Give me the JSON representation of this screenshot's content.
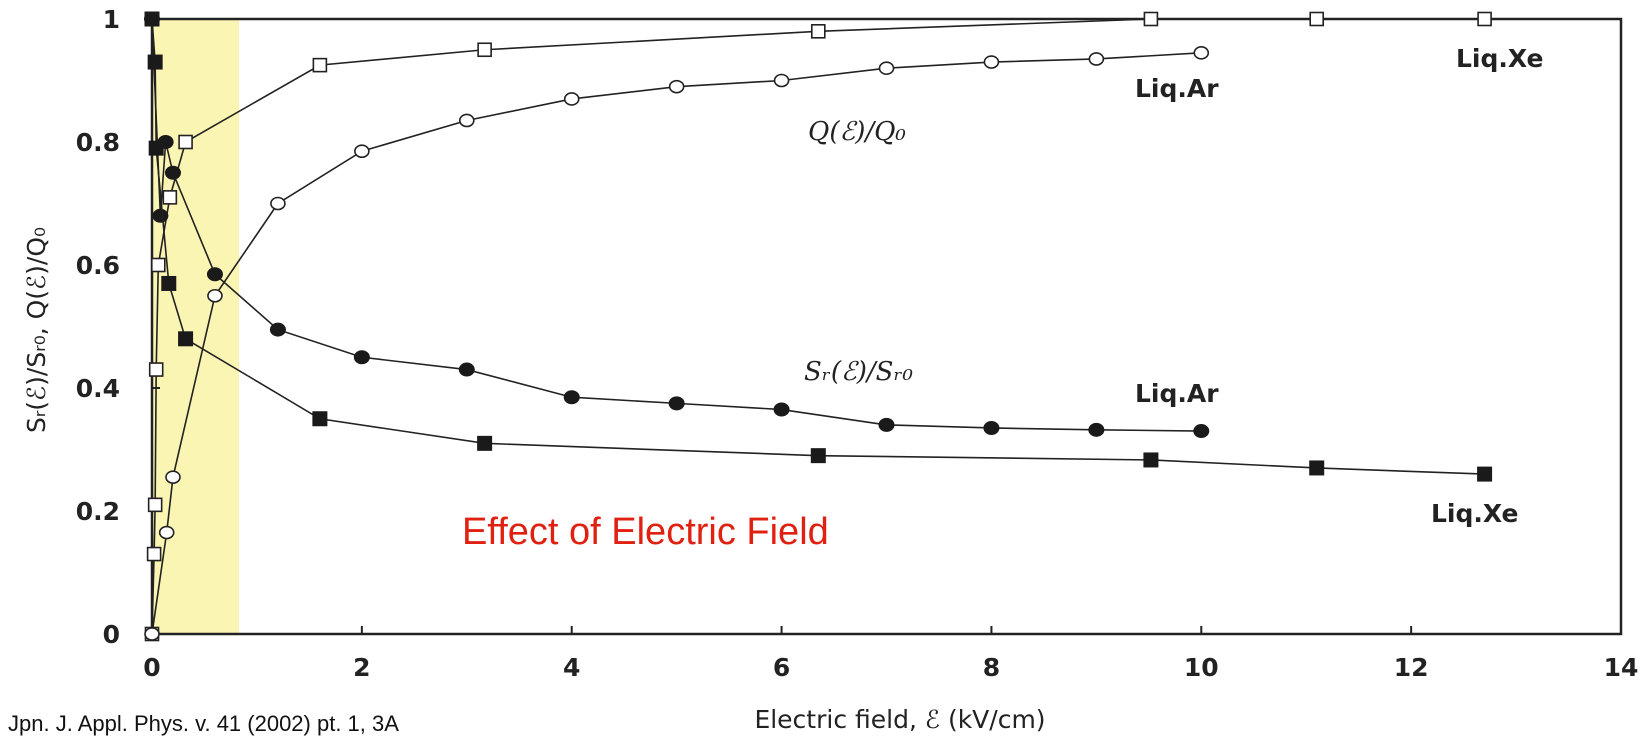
{
  "chart_data": {
    "type": "line",
    "xlabel": "Electric field, ℰ (kV/cm)",
    "ylabel": "Sᵣ(ℰ)/Sᵣ₀, Q(ℰ)/Q₀",
    "xlim": [
      0,
      14
    ],
    "ylim": [
      0,
      1
    ],
    "x_ticks": [
      "0",
      "2",
      "4",
      "6",
      "8",
      "10",
      "12",
      "14"
    ],
    "y_ticks": [
      "0",
      "0.2",
      "0.4",
      "0.6",
      "0.8",
      "1"
    ],
    "highlight_region": {
      "x": [
        0,
        0.83
      ],
      "y": [
        0,
        1
      ],
      "color": "#fbf5b4"
    },
    "series": [
      {
        "marker": "open-square",
        "values": [
          [
            0,
            0
          ],
          [
            0.02,
            0.13
          ],
          [
            0.03,
            0.21
          ],
          [
            0.04,
            0.43
          ],
          [
            0.06,
            0.6
          ],
          [
            0.17,
            0.71
          ],
          [
            0.32,
            0.8
          ],
          [
            1.6,
            0.925
          ],
          [
            3.17,
            0.95
          ],
          [
            6.35,
            0.98
          ],
          [
            9.52,
            1.0
          ],
          [
            11.1,
            1.0
          ],
          [
            12.7,
            1.0
          ]
        ]
      },
      {
        "marker": "open-circle",
        "values": [
          [
            0,
            0
          ],
          [
            0.14,
            0.165
          ],
          [
            0.2,
            0.255
          ],
          [
            0.6,
            0.55
          ],
          [
            1.2,
            0.7
          ],
          [
            2,
            0.785
          ],
          [
            3,
            0.835
          ],
          [
            4,
            0.87
          ],
          [
            5,
            0.89
          ],
          [
            6,
            0.9
          ],
          [
            7,
            0.92
          ],
          [
            8,
            0.93
          ],
          [
            9,
            0.935
          ],
          [
            10,
            0.945
          ]
        ]
      },
      {
        "marker": "filled-circle",
        "values": [
          [
            0,
            1.0
          ],
          [
            0.08,
            0.68
          ],
          [
            0.13,
            0.8
          ],
          [
            0.2,
            0.75
          ],
          [
            0.6,
            0.585
          ],
          [
            1.2,
            0.495
          ],
          [
            2,
            0.45
          ],
          [
            3,
            0.43
          ],
          [
            4,
            0.385
          ],
          [
            5,
            0.375
          ],
          [
            6,
            0.365
          ],
          [
            7,
            0.34
          ],
          [
            8,
            0.335
          ],
          [
            9,
            0.332
          ],
          [
            10,
            0.33
          ]
        ]
      },
      {
        "marker": "filled-square",
        "values": [
          [
            0,
            1.0
          ],
          [
            0.03,
            0.93
          ],
          [
            0.04,
            0.79
          ],
          [
            0.16,
            0.57
          ],
          [
            0.32,
            0.48
          ],
          [
            1.6,
            0.35
          ],
          [
            3.17,
            0.31
          ],
          [
            6.35,
            0.29
          ],
          [
            9.52,
            0.283
          ],
          [
            11.1,
            0.27
          ],
          [
            12.7,
            0.26
          ]
        ]
      }
    ],
    "annotations": {
      "liq_xe_top": "Liq.Xe",
      "liq_ar_top": "Liq.Ar",
      "q_ratio": "Q(ℰ)/Q₀",
      "s_ratio": "Sᵣ(ℰ)/Sᵣ₀",
      "liq_ar_mid": "Liq.Ar",
      "liq_xe_bottom": "Liq.Xe",
      "effect": "Effect of Electric Field"
    }
  },
  "footer": {
    "reference": "Jpn. J. Appl. Phys. v. 41 (2002) pt. 1, 3A"
  },
  "colors": {
    "highlight": "#fbf5b4",
    "red_text": "#e02010",
    "line": "#222222"
  }
}
